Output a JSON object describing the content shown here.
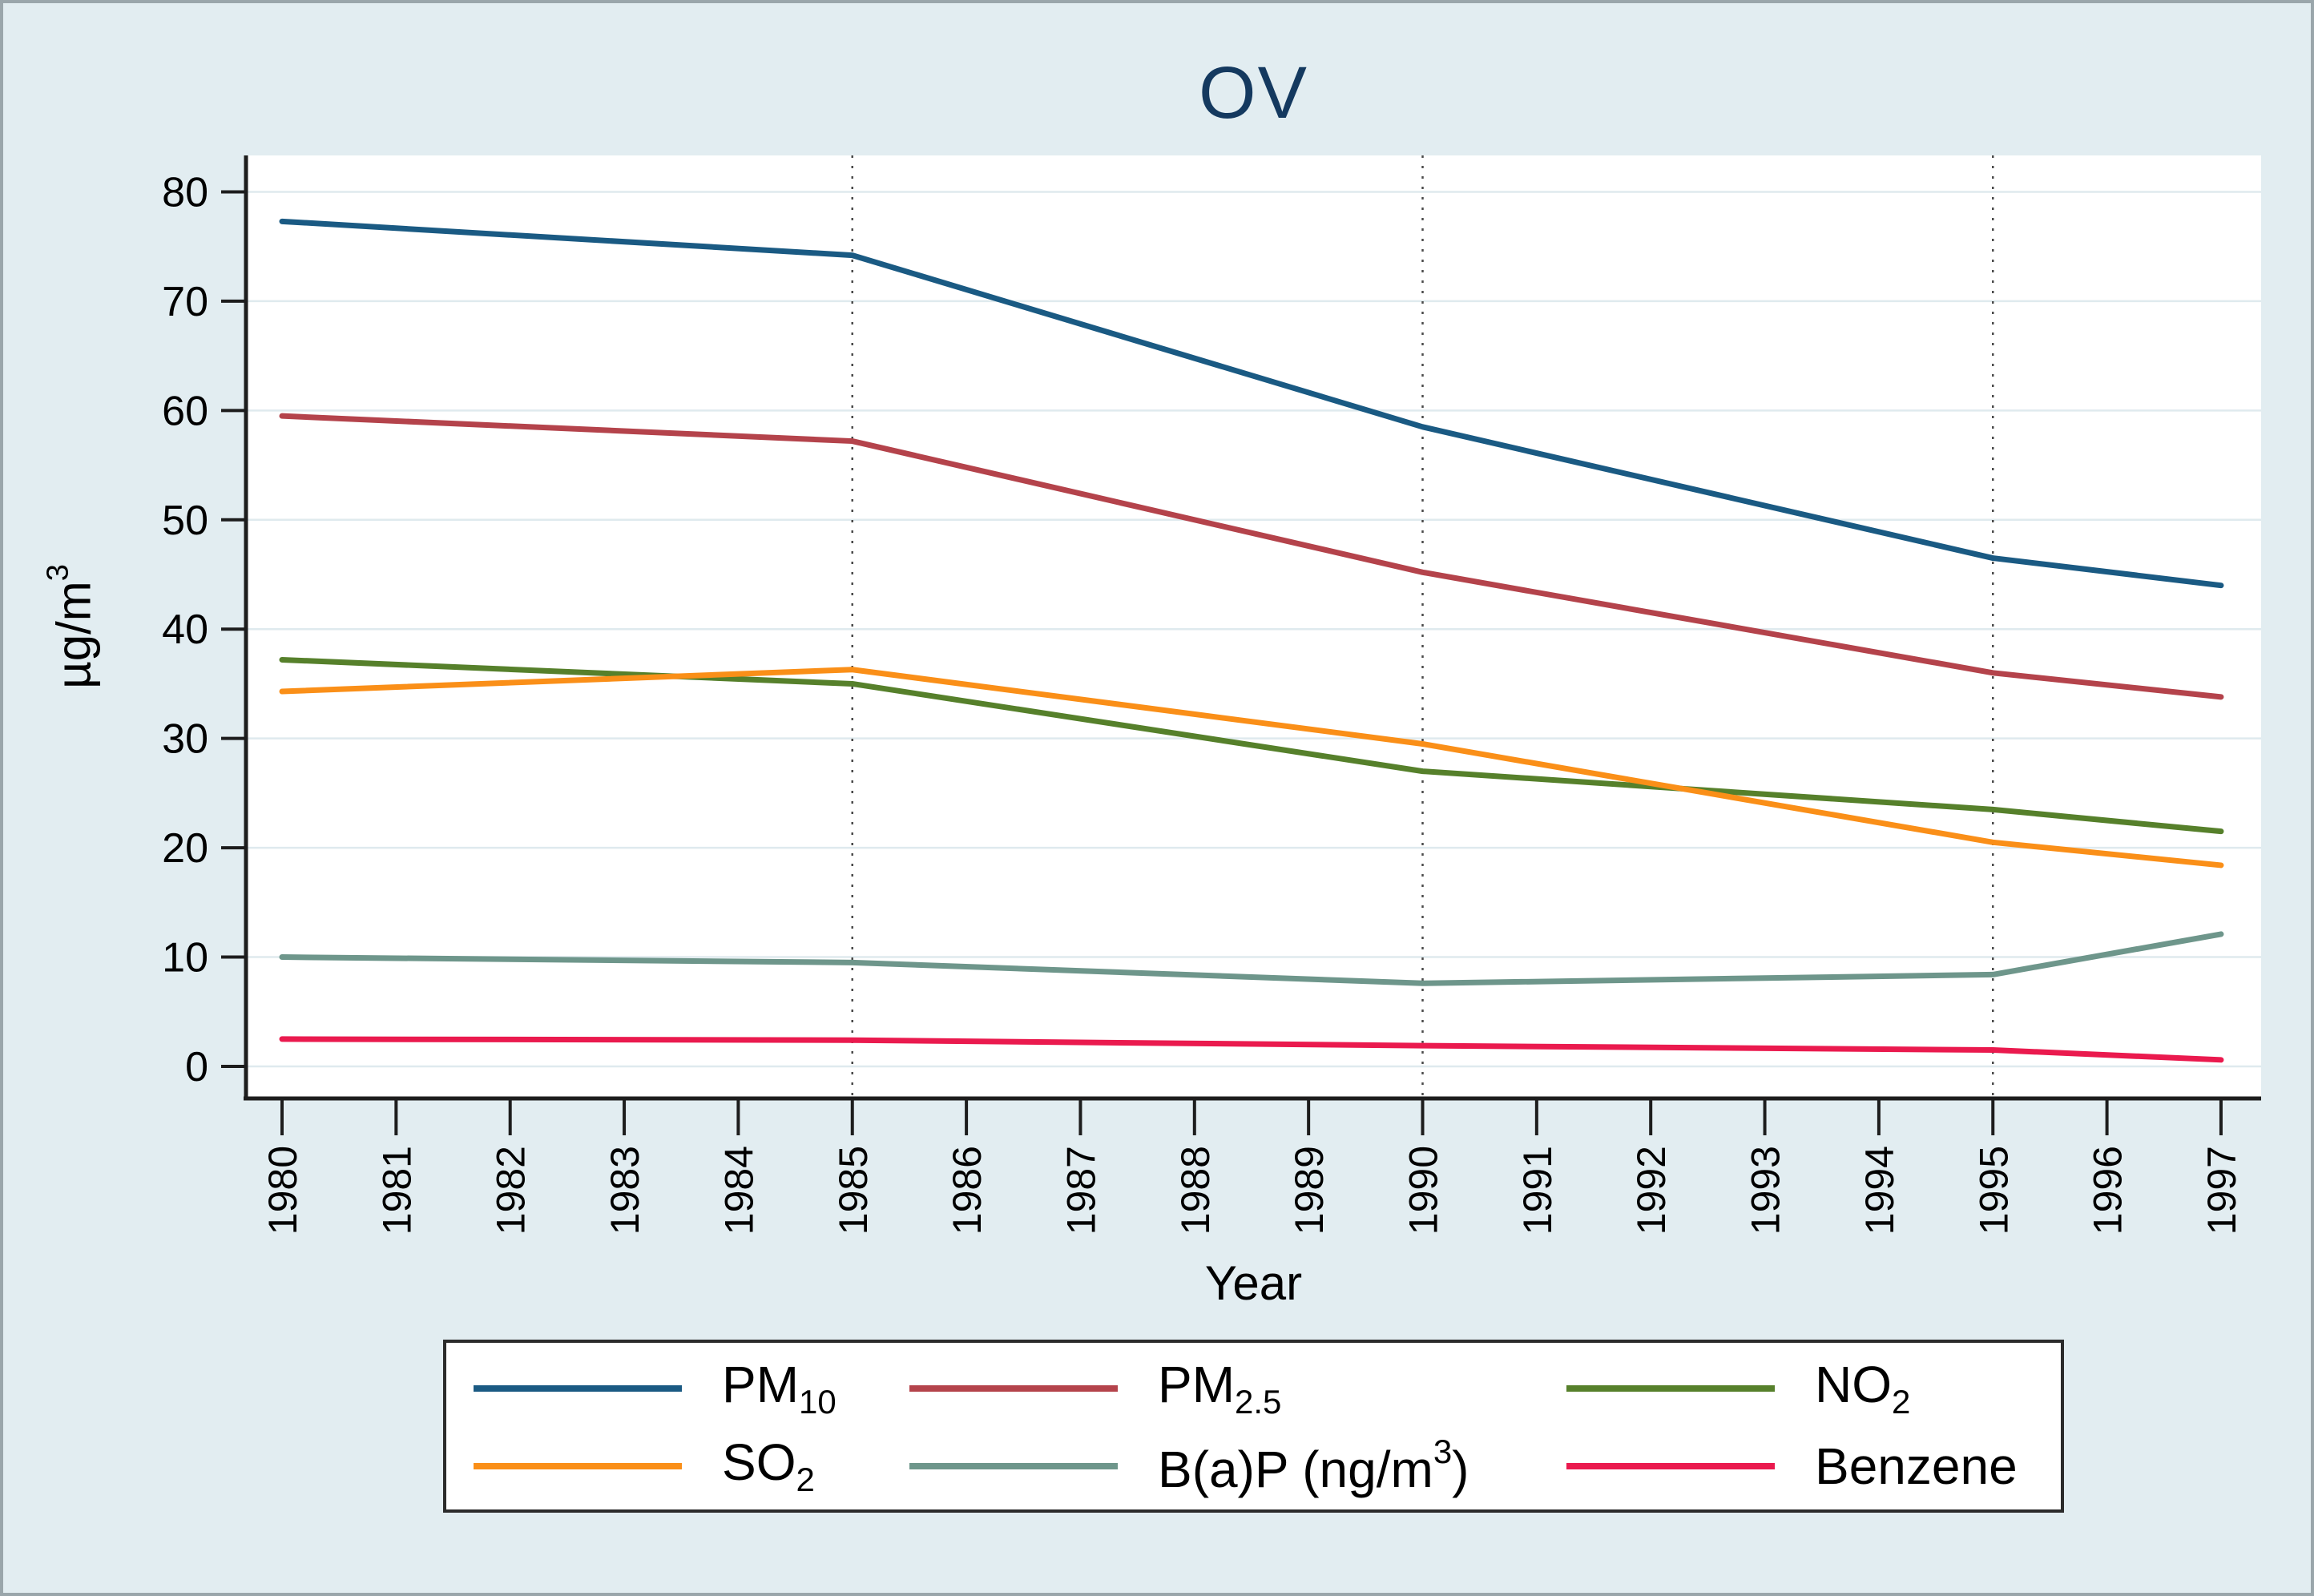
{
  "figure": {
    "background_color": "#e2edf1",
    "plot_background": "#ffffff",
    "title_color": "#14395f",
    "gridline_color": "#dfeaee",
    "dotted_line_color": "#4a4a4a",
    "axis_color": "#1d1d1d"
  },
  "chart_data": {
    "type": "line",
    "title": "OV",
    "xlabel": "Year",
    "ylabel": "µg/m³",
    "ylabel_parts": {
      "base": "µg/m",
      "sup": "3"
    },
    "ylim": [
      0,
      84
    ],
    "y_tick_values": [
      0,
      10,
      20,
      30,
      40,
      50,
      60,
      70,
      80
    ],
    "y_tick_labels": [
      "0",
      "10",
      "20",
      "30",
      "40",
      "50",
      "60",
      "70",
      "80"
    ],
    "x_tick_years": [
      1980,
      1981,
      1982,
      1983,
      1984,
      1985,
      1986,
      1987,
      1988,
      1989,
      1990,
      1991,
      1992,
      1993,
      1994,
      1995,
      1996,
      1997
    ],
    "x_tick_labels": [
      "1980",
      "1981",
      "1982",
      "1983",
      "1984",
      "1985",
      "1986",
      "1987",
      "1988",
      "1989",
      "1990",
      "1991",
      "1992",
      "1993",
      "1994",
      "1995",
      "1996",
      "1997"
    ],
    "x_anchors": [
      1980,
      1985,
      1990,
      1995,
      1997
    ],
    "dotted_vlines": [
      1985,
      1990,
      1995
    ],
    "grid": "horizontal gridlines on, dotted vertical reference lines at 1985/1990/1995",
    "legend_position": "bottom",
    "series": [
      {
        "name": "PM10",
        "label": {
          "base": "PM",
          "sub": "10"
        },
        "color": "#1a5a83",
        "values": [
          77.3,
          74.2,
          58.5,
          46.5,
          44.0
        ]
      },
      {
        "name": "PM2-5",
        "label": {
          "base": "PM",
          "sub": "2.5"
        },
        "color": "#b4434b",
        "values": [
          59.5,
          57.2,
          45.2,
          36.0,
          33.8
        ]
      },
      {
        "name": "NO2",
        "label": {
          "base": "NO",
          "sub": "2"
        },
        "color": "#56802b",
        "values": [
          37.2,
          35.0,
          27.0,
          23.5,
          21.5
        ]
      },
      {
        "name": "SO2",
        "label": {
          "base": "SO",
          "sub": "2"
        },
        "color": "#fa8f18",
        "values": [
          34.3,
          36.3,
          29.5,
          20.5,
          18.4
        ]
      },
      {
        "name": "BaP",
        "label": {
          "base": "B(a)P (ng/m",
          "sup": "3",
          "suffix": ")"
        },
        "color": "#6e968b",
        "values": [
          10.0,
          9.5,
          7.6,
          8.4,
          12.1
        ]
      },
      {
        "name": "Benzene",
        "label": {
          "base": "Benzene"
        },
        "color": "#ea1a4e",
        "values": [
          2.5,
          2.4,
          1.9,
          1.5,
          0.6
        ]
      }
    ]
  }
}
